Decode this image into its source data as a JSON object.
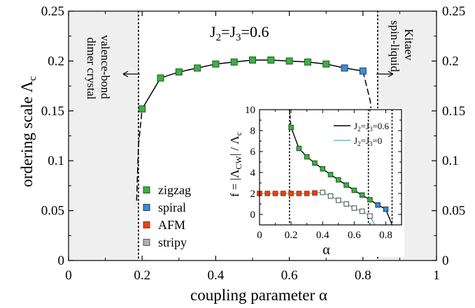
{
  "chart_data": [
    {
      "type": "scatter",
      "title": "J2=J3=0.6",
      "title_parts": {
        "base": "J",
        "sub1": "2",
        "eq1": "=J",
        "sub2": "3",
        "rest": "=0.6"
      },
      "xlabel": "coupling parameter",
      "xlabel_symbol": "α",
      "ylabel": "ordering scale",
      "ylabel_symbol": "Λ",
      "ylabel_sub": "c",
      "xlim": [
        0,
        1
      ],
      "ylim": [
        0,
        0.25
      ],
      "xticks": [
        "0",
        "0.2",
        "0.4",
        "0.6",
        "0.8",
        "1"
      ],
      "yticks": [
        "0",
        "0.05",
        "0.1",
        "0.15",
        "0.2",
        "0.25"
      ],
      "grid": false,
      "legend_position": "lower-left",
      "legend": [
        {
          "label": "zigzag",
          "color": "#3cb043"
        },
        {
          "label": "spiral",
          "color": "#3a8fd0"
        },
        {
          "label": "AFM",
          "color": "#e8401c"
        },
        {
          "label": "stripy",
          "color": "#b0b0b0"
        }
      ],
      "regions": [
        {
          "label_lines": [
            "valence-bond",
            "dimer crystal"
          ],
          "x_range": [
            0,
            0.19
          ],
          "fill": "#efefef",
          "boundary": 0.19,
          "arrow": "left"
        },
        {
          "label_lines": [
            "Kitaev",
            "spin-liquid"
          ],
          "x_range": [
            0.84,
            1
          ],
          "fill": "#efefef",
          "boundary": 0.84,
          "arrow": "right"
        }
      ],
      "series": [
        {
          "points": [
            {
              "x": 0.2,
              "y": 0.152,
              "phase": "zigzag"
            },
            {
              "x": 0.25,
              "y": 0.183,
              "phase": "zigzag"
            },
            {
              "x": 0.3,
              "y": 0.189,
              "phase": "zigzag"
            },
            {
              "x": 0.35,
              "y": 0.193,
              "phase": "zigzag"
            },
            {
              "x": 0.4,
              "y": 0.197,
              "phase": "zigzag"
            },
            {
              "x": 0.45,
              "y": 0.199,
              "phase": "zigzag"
            },
            {
              "x": 0.5,
              "y": 0.201,
              "phase": "zigzag"
            },
            {
              "x": 0.55,
              "y": 0.201,
              "phase": "zigzag"
            },
            {
              "x": 0.6,
              "y": 0.2,
              "phase": "zigzag"
            },
            {
              "x": 0.65,
              "y": 0.199,
              "phase": "zigzag"
            },
            {
              "x": 0.7,
              "y": 0.197,
              "phase": "zigzag"
            },
            {
              "x": 0.75,
              "y": 0.193,
              "phase": "spiral"
            },
            {
              "x": 0.8,
              "y": 0.19,
              "phase": "spiral"
            }
          ],
          "dashed_extension_left": [
            [
              0.185,
              0.06
            ],
            [
              0.19,
              0.115
            ],
            [
              0.2,
              0.152
            ]
          ],
          "dashed_extension_right": [
            [
              0.8,
              0.19
            ],
            [
              0.82,
              0.16
            ],
            [
              0.835,
              0.1
            ],
            [
              0.84,
              0.06
            ]
          ]
        }
      ]
    },
    {
      "type": "line",
      "panel": "inset",
      "xlabel": "α",
      "ylabel": "f = |Λ_CW| / Λ_c",
      "ylabel_parts": {
        "a": "f = |Λ",
        "sub1": "CW",
        "b": "| / Λ",
        "sub2": "c"
      },
      "xlim": [
        0,
        0.9
      ],
      "ylim": [
        -1,
        10
      ],
      "xticks": [
        "0",
        "0.2",
        "0.4",
        "0.6",
        "0.8"
      ],
      "yticks": [
        "0",
        "2",
        "4",
        "6",
        "8",
        "10"
      ],
      "vlines": [
        0.19,
        0.69,
        0.84
      ],
      "legend_position": "top-right",
      "series": [
        {
          "name": "J2=J3=0.6",
          "name_parts": {
            "base": "J",
            "sub1": "2",
            "eq1": "=J",
            "sub2": "3",
            "rest": "=0.6"
          },
          "color": "#000000",
          "x": [
            0.2,
            0.25,
            0.3,
            0.35,
            0.4,
            0.45,
            0.5,
            0.55,
            0.6,
            0.65,
            0.7,
            0.75,
            0.8
          ],
          "y": [
            8.3,
            6.3,
            5.5,
            4.9,
            4.35,
            3.8,
            3.3,
            2.8,
            2.3,
            1.85,
            1.4,
            0.9,
            0.5
          ],
          "phase": [
            "zigzag",
            "zigzag",
            "zigzag",
            "zigzag",
            "zigzag",
            "zigzag",
            "zigzag",
            "zigzag",
            "zigzag",
            "zigzag",
            "zigzag",
            "spiral",
            "spiral"
          ],
          "dashed_extension": [
            [
              0.19,
              10.0
            ],
            [
              0.2,
              8.3
            ]
          ],
          "tail": [
            [
              0.8,
              0.5
            ],
            [
              0.84,
              -1.0
            ]
          ]
        },
        {
          "name": "J2=J3=0",
          "name_parts": {
            "base": "J",
            "sub1": "2",
            "eq1": "=J",
            "sub2": "3",
            "rest": "=0"
          },
          "color": "#5fc8c0",
          "x": [
            0.0,
            0.05,
            0.1,
            0.15,
            0.2,
            0.25,
            0.3,
            0.35,
            0.4,
            0.45,
            0.5,
            0.55,
            0.6,
            0.65,
            0.7
          ],
          "y": [
            2.0,
            2.0,
            2.0,
            2.0,
            2.0,
            2.0,
            2.0,
            2.05,
            2.1,
            1.75,
            1.35,
            1.0,
            0.6,
            0.3,
            -0.15
          ],
          "phase": [
            "AFM",
            "AFM",
            "AFM",
            "AFM",
            "AFM",
            "AFM",
            "AFM",
            "AFM",
            "stripy",
            "stripy",
            "stripy",
            "stripy",
            "stripy",
            "stripy",
            "stripy"
          ],
          "tail": [
            [
              0.7,
              -0.15
            ],
            [
              0.73,
              -1.0
            ]
          ]
        }
      ]
    }
  ]
}
